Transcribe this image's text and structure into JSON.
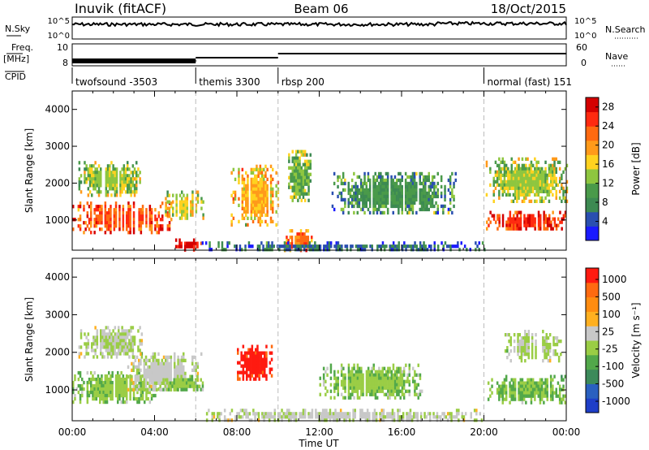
{
  "header": {
    "radar": "Inuvik (fitACF)",
    "beam": "Beam 06",
    "date": "18/Oct/2015"
  },
  "status_panel": {
    "nsky_label": "N.Sky",
    "nsky_ticks": [
      "10^5",
      "10^0"
    ],
    "nsearch_label": "N.Search",
    "nsearch_ticks": [
      "10^5",
      "10^0"
    ],
    "freq_label": "Freq.",
    "freq_unit": "[MHz]",
    "freq_ticks": [
      "10",
      "8"
    ],
    "nave_label": "Nave",
    "nave_ticks": [
      "60",
      "0"
    ],
    "cpid_label": "CPID",
    "cpid_segments": [
      {
        "label": "twofsound -3503",
        "start_hr": 0
      },
      {
        "label": "themis 3300",
        "start_hr": 6
      },
      {
        "label": "rbsp 200",
        "start_hr": 10
      },
      {
        "label": "normal (fast) 151",
        "start_hr": 20
      }
    ]
  },
  "colors": {
    "power_scale": [
      "#1a1aff",
      "#2a4fb0",
      "#3d8a52",
      "#4a9a4a",
      "#8ec63f",
      "#ffd21f",
      "#ff9a1a",
      "#ff6a10",
      "#ff2a10",
      "#d40000"
    ],
    "velocity_scale": [
      "#1e3ec8",
      "#2a60c0",
      "#3c8a5a",
      "#52a84a",
      "#9acd45",
      "#c8c8c8",
      "#ffb020",
      "#ff8c10",
      "#ff6a10",
      "#ff1a10"
    ]
  },
  "chart_data": [
    {
      "type": "heatmap",
      "title": "",
      "xlabel": "Time UT",
      "ylabel": "Slant Range [km]",
      "xlim_hours": [
        0,
        24
      ],
      "ylim": [
        180,
        4500
      ],
      "xticks": [
        "00:00",
        "04:00",
        "08:00",
        "12:00",
        "16:00",
        "20:00",
        "00:00"
      ],
      "yticks": [
        1000,
        2000,
        3000,
        4000
      ],
      "colorbar_label": "Power [dB]",
      "colorbar_ticks": [
        4,
        8,
        12,
        16,
        20,
        24,
        28
      ],
      "colorbar_range": [
        0,
        30
      ],
      "blobs": [
        {
          "t0": 0.0,
          "t1": 4.8,
          "r0": 650,
          "r1": 1500,
          "value": 24
        },
        {
          "t0": 0.3,
          "t1": 3.4,
          "r0": 1650,
          "r1": 2600,
          "value": 14
        },
        {
          "t0": 4.5,
          "t1": 6.4,
          "r0": 1050,
          "r1": 1800,
          "value": 16
        },
        {
          "t0": 5.0,
          "t1": 6.3,
          "r0": 220,
          "r1": 500,
          "value": 28
        },
        {
          "t0": 7.7,
          "t1": 10.1,
          "r0": 900,
          "r1": 2500,
          "value": 18
        },
        {
          "t0": 10.2,
          "t1": 11.8,
          "r0": 200,
          "r1": 750,
          "value": 22
        },
        {
          "t0": 10.4,
          "t1": 11.6,
          "r0": 1500,
          "r1": 2900,
          "value": 12
        },
        {
          "t0": 6.2,
          "t1": 20.0,
          "r0": 200,
          "r1": 420,
          "value": 6
        },
        {
          "t0": 12.6,
          "t1": 18.6,
          "r0": 1200,
          "r1": 2300,
          "value": 9
        },
        {
          "t0": 20.1,
          "t1": 24.0,
          "r0": 750,
          "r1": 1250,
          "value": 26
        },
        {
          "t0": 20.0,
          "t1": 24.0,
          "r0": 1500,
          "r1": 2700,
          "value": 14
        }
      ]
    },
    {
      "type": "heatmap",
      "title": "",
      "xlabel": "Time UT",
      "ylabel": "Slant Range [km]",
      "xlim_hours": [
        0,
        24
      ],
      "ylim": [
        180,
        4500
      ],
      "xticks": [
        "00:00",
        "04:00",
        "08:00",
        "12:00",
        "16:00",
        "20:00",
        "00:00"
      ],
      "yticks": [
        1000,
        2000,
        3000,
        4000
      ],
      "colorbar_label": "Velocity [m s⁻¹]",
      "colorbar_ticks": [
        "1000",
        "500",
        "100",
        "25",
        "-25",
        "-100",
        "-500",
        "-1000"
      ],
      "colorbar_range": [
        -1000,
        1000
      ],
      "blobs": [
        {
          "t0": 0.0,
          "t1": 4.2,
          "r0": 650,
          "r1": 1500,
          "value": -150
        },
        {
          "t0": 0.3,
          "t1": 3.5,
          "r0": 1900,
          "r1": 2700,
          "value": 0
        },
        {
          "t0": 2.5,
          "t1": 6.3,
          "r0": 1000,
          "r1": 2000,
          "value": 60
        },
        {
          "t0": 4.3,
          "t1": 6.3,
          "r0": 1000,
          "r1": 1400,
          "value": -150
        },
        {
          "t0": 8.0,
          "t1": 9.8,
          "r0": 1250,
          "r1": 2200,
          "value": 900
        },
        {
          "t0": 6.5,
          "t1": 20.0,
          "r0": 200,
          "r1": 500,
          "value": 50
        },
        {
          "t0": 12.0,
          "t1": 17.0,
          "r0": 800,
          "r1": 1700,
          "value": -150
        },
        {
          "t0": 20.0,
          "t1": 24.0,
          "r0": 700,
          "r1": 1400,
          "value": -200
        },
        {
          "t0": 21.0,
          "t1": 23.8,
          "r0": 1800,
          "r1": 2600,
          "value": 0
        }
      ]
    }
  ]
}
